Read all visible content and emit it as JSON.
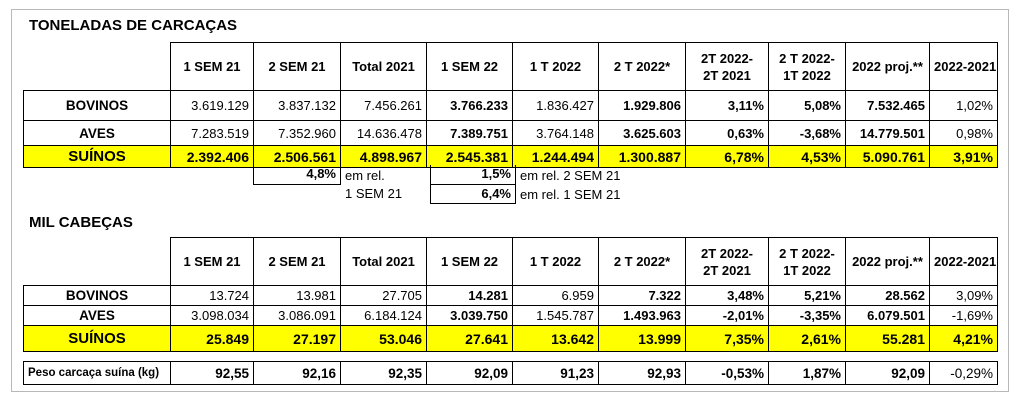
{
  "tonelagem": {
    "title": "TONELADAS DE CARCAÇAS",
    "headers": [
      "1 SEM 21",
      "2 SEM 21",
      "Total 2021",
      "1 SEM 22",
      "1 T 2022",
      "2 T 2022*",
      "2T 2022-\n2T 2021",
      "2 T 2022-\n1T 2022",
      "2022 proj.**",
      "2022-2021"
    ],
    "rows": [
      {
        "label": "BOVINOS",
        "values": [
          "3.619.129",
          "3.837.132",
          "7.456.261",
          "3.766.233",
          "1.836.427",
          "1.929.806",
          "3,11%",
          "5,08%",
          "7.532.465",
          "1,02%"
        ]
      },
      {
        "label": "AVES",
        "values": [
          "7.283.519",
          "7.352.960",
          "14.636.478",
          "7.389.751",
          "3.764.148",
          "3.625.603",
          "0,63%",
          "-3,68%",
          "14.779.501",
          "0,98%"
        ]
      },
      {
        "label": "SUÍNOS",
        "values": [
          "2.392.406",
          "2.506.561",
          "4.898.967",
          "2.545.381",
          "1.244.494",
          "1.300.887",
          "6,78%",
          "4,53%",
          "5.090.761",
          "3,91%"
        ]
      }
    ],
    "notes": {
      "box1": "4,8%",
      "box1_text": "em rel.",
      "box1_text2": "1 SEM 21",
      "box2": "1,5%",
      "box2_text": "em rel. 2 SEM 21",
      "box3": "6,4%",
      "box3_text": "em rel. 1 SEM 21"
    }
  },
  "cabecas": {
    "title": "MIL CABEÇAS",
    "headers": [
      "1 SEM 21",
      "2 SEM 21",
      "Total 2021",
      "1 SEM 22",
      "1 T 2022",
      "2 T 2022*",
      "2T 2022-\n2T 2021",
      "2 T 2022-\n1T 2022",
      "2022 proj.**",
      "2022-2021"
    ],
    "rows": [
      {
        "label": "BOVINOS",
        "values": [
          "13.724",
          "13.981",
          "27.705",
          "14.281",
          "6.959",
          "7.322",
          "3,48%",
          "5,21%",
          "28.562",
          "3,09%"
        ]
      },
      {
        "label": "AVES",
        "values": [
          "3.098.034",
          "3.086.091",
          "6.184.124",
          "3.039.750",
          "1.545.787",
          "1.493.963",
          "-2,01%",
          "-3,35%",
          "6.079.501",
          "-1,69%"
        ]
      },
      {
        "label": "SUÍNOS",
        "values": [
          "25.849",
          "27.197",
          "53.046",
          "27.641",
          "13.642",
          "13.999",
          "7,35%",
          "2,61%",
          "55.281",
          "4,21%"
        ]
      }
    ]
  },
  "peso": {
    "label": "Peso carcaça suína (kg)",
    "values": [
      "92,55",
      "92,16",
      "92,35",
      "92,09",
      "91,23",
      "92,93",
      "-0,53%",
      "1,87%",
      "92,09",
      "-0,29%"
    ]
  }
}
